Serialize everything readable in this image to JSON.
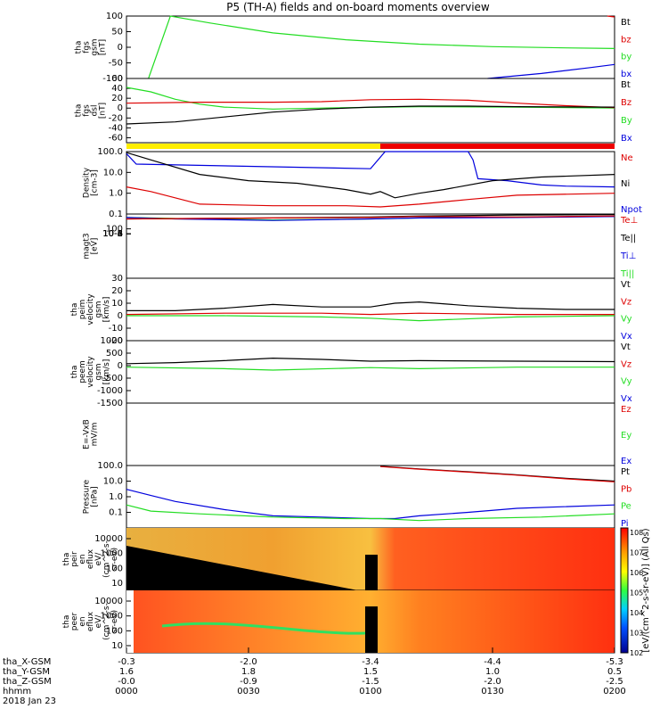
{
  "title": "P5 (TH-A) fields and on-board moments overview",
  "colors": {
    "black": "#000000",
    "red": "#dd0000",
    "green": "#22dd22",
    "blue": "#0000dd",
    "yellow": "#ffee00",
    "barred": "#ee0000"
  },
  "chart_data": {
    "type": "line",
    "time_axis": {
      "ticks": [
        "0000",
        "0030",
        "0100",
        "0130",
        "0200"
      ],
      "rows": [
        {
          "label": "tha_X-GSM",
          "values": [
            "-0.3",
            "-2.0",
            "-3.4",
            "-4.4",
            "-5.3"
          ]
        },
        {
          "label": "tha_Y-GSM",
          "values": [
            "1.6",
            "1.8",
            "1.5",
            "1.0",
            "0.5"
          ]
        },
        {
          "label": "tha_Z-GSM",
          "values": [
            "-0.0",
            "-0.9",
            "-1.5",
            "-2.0",
            "-2.5"
          ]
        },
        {
          "label": "hhmm",
          "values": [
            "0000",
            "0030",
            "0100",
            "0130",
            "0200"
          ]
        }
      ],
      "date": "2018 Jan 23"
    },
    "panels": [
      {
        "id": "fgs_gsm",
        "ylabel": [
          "tha",
          "fgs",
          "gsm",
          "[nT]"
        ],
        "ylim": [
          -100,
          100
        ],
        "yticks": [
          "100",
          "50",
          "0",
          "-50",
          "-100"
        ],
        "legend": [
          {
            "name": "Bt",
            "color": "#000000"
          },
          {
            "name": "bz",
            "color": "#dd0000"
          },
          {
            "name": "by",
            "color": "#22dd22"
          },
          {
            "name": "bx",
            "color": "#0000dd"
          }
        ],
        "series": [
          {
            "name": "by",
            "color": "#22dd22",
            "x": [
              0.045,
              0.09,
              0.17,
              0.3,
              0.45,
              0.6,
              0.75,
              0.9,
              1.0
            ],
            "y": [
              -100,
              100,
              78,
              46,
              24,
              10,
              2,
              -2,
              -4
            ]
          },
          {
            "name": "bx",
            "color": "#0000dd",
            "x": [
              0.74,
              0.85,
              0.95,
              1.0
            ],
            "y": [
              -100,
              -84,
              -65,
              -55
            ]
          },
          {
            "name": "bz",
            "color": "#dd0000",
            "x": [
              0.985,
              1.0
            ],
            "y": [
              100,
              97
            ]
          }
        ]
      },
      {
        "id": "fgs_dsl",
        "ylabel": [
          "tha",
          "fgs",
          "dsl",
          "[nT]"
        ],
        "ylim": [
          -70,
          60
        ],
        "yticks": [
          "60",
          "40",
          "20",
          "0",
          "-20",
          "-40",
          "-60"
        ],
        "legend": [
          {
            "name": "Bt",
            "color": "#000000"
          },
          {
            "name": "Bz",
            "color": "#dd0000"
          },
          {
            "name": "By",
            "color": "#22dd22"
          },
          {
            "name": "Bx",
            "color": "#0000dd"
          }
        ],
        "series": [
          {
            "name": "By",
            "color": "#22dd22",
            "x": [
              0,
              0.05,
              0.1,
              0.15,
              0.2,
              0.3,
              0.4,
              0.6,
              0.8,
              1.0
            ],
            "y": [
              42,
              33,
              18,
              8,
              2,
              -2,
              0,
              3,
              2,
              0
            ]
          },
          {
            "name": "Bz",
            "color": "#dd0000",
            "x": [
              0,
              0.15,
              0.3,
              0.4,
              0.5,
              0.6,
              0.7,
              0.8,
              0.9,
              1.0
            ],
            "y": [
              10,
              12,
              12,
              13,
              17,
              18,
              16,
              10,
              5,
              1
            ]
          },
          {
            "name": "Bt",
            "color": "#000000",
            "x": [
              0,
              0.1,
              0.2,
              0.3,
              0.4,
              0.5,
              0.6,
              0.7,
              0.8,
              1.0
            ],
            "y": [
              -32,
              -28,
              -18,
              -8,
              -2,
              2,
              4,
              4,
              3,
              2
            ]
          }
        ]
      },
      {
        "id": "density",
        "ylabel": [
          "Density",
          "[cm-3]"
        ],
        "ylim": [
          0.1,
          100
        ],
        "log": true,
        "yticks": [
          "100.0",
          "10.0",
          "1.0",
          "0.1"
        ],
        "legend": [
          {
            "name": "Ne",
            "color": "#dd0000"
          },
          {
            "name": "Ni",
            "color": "#000000"
          },
          {
            "name": "Npot",
            "color": "#0000dd"
          }
        ],
        "series": [
          {
            "name": "Npot",
            "color": "#0000dd",
            "x": [
              0,
              0.02,
              0.5,
              0.53,
              0.7,
              0.71,
              0.72,
              0.78,
              0.85,
              0.9,
              1.0
            ],
            "y": [
              80,
              25,
              15,
              100,
              100,
              40,
              5,
              4,
              2.5,
              2.2,
              2.0
            ]
          },
          {
            "name": "Ni",
            "color": "#000000",
            "x": [
              0,
              0.05,
              0.15,
              0.25,
              0.35,
              0.45,
              0.5,
              0.52,
              0.55,
              0.6,
              0.65,
              0.75,
              0.85,
              1.0
            ],
            "y": [
              90,
              40,
              8,
              4,
              3,
              1.5,
              0.9,
              1.2,
              0.6,
              1.0,
              1.5,
              4,
              6,
              8
            ]
          },
          {
            "name": "Ne",
            "color": "#dd0000",
            "x": [
              0,
              0.05,
              0.15,
              0.3,
              0.45,
              0.52,
              0.6,
              0.7,
              0.8,
              1.0
            ],
            "y": [
              2,
              1.2,
              0.3,
              0.25,
              0.25,
              0.22,
              0.3,
              0.5,
              0.8,
              1.0
            ]
          }
        ]
      },
      {
        "id": "magt3",
        "ylabel": [
          "magt3",
          "[eV]"
        ],
        "ylim": [
          -9,
          4
        ],
        "log": true,
        "yticks": [
          "10^4",
          "10^2",
          "10^0",
          "10^-2",
          "10^-4",
          "10^-6",
          "10^-8"
        ],
        "legend": [
          {
            "name": "Te⊥",
            "color": "#dd0000"
          },
          {
            "name": "Te||",
            "color": "#000000"
          },
          {
            "name": "Ti⊥",
            "color": "#0000dd"
          },
          {
            "name": "Ti||",
            "color": "#22dd22"
          }
        ],
        "series": [
          {
            "name": "Ti||",
            "color": "#22dd22",
            "x": [
              0,
              0.1,
              0.3,
              0.5,
              0.6,
              0.8,
              1.0
            ],
            "y": [
              3.3,
              3.1,
              2.8,
              3.0,
              3.2,
              3.4,
              3.5
            ]
          },
          {
            "name": "Ti⊥",
            "color": "#0000dd",
            "x": [
              0,
              0.1,
              0.3,
              0.5,
              0.6,
              0.8,
              1.0
            ],
            "y": [
              3.3,
              3.0,
              2.7,
              3.0,
              3.2,
              3.3,
              3.5
            ]
          },
          {
            "name": "Te||",
            "color": "#000000",
            "x": [
              0,
              0.3,
              0.5,
              0.6,
              0.8,
              1.0
            ],
            "y": [
              3.0,
              3.2,
              3.4,
              3.6,
              3.8,
              3.9
            ]
          },
          {
            "name": "Te⊥",
            "color": "#dd0000",
            "x": [
              0,
              0.3,
              0.5,
              0.6,
              0.8,
              1.0
            ],
            "y": [
              3.0,
              3.2,
              3.3,
              3.5,
              3.4,
              3.6
            ]
          }
        ]
      },
      {
        "id": "peim",
        "ylabel": [
          "tha",
          "peim",
          "velocity",
          "gsm",
          "[km/s]"
        ],
        "ylim": [
          -20,
          30
        ],
        "yticks": [
          "30",
          "20",
          "10",
          "0",
          "-10",
          "-20"
        ],
        "legend": [
          {
            "name": "Vt",
            "color": "#000000"
          },
          {
            "name": "Vz",
            "color": "#dd0000"
          },
          {
            "name": "Vy",
            "color": "#22dd22"
          },
          {
            "name": "Vx",
            "color": "#0000dd"
          }
        ],
        "series": [
          {
            "name": "Vt",
            "color": "#000000",
            "x": [
              0,
              0.1,
              0.2,
              0.3,
              0.4,
              0.5,
              0.55,
              0.6,
              0.7,
              0.8,
              0.9,
              1.0
            ],
            "y": [
              4,
              4,
              6,
              9,
              7,
              7,
              10,
              11,
              8,
              6,
              5,
              5
            ]
          },
          {
            "name": "Vz",
            "color": "#dd0000",
            "x": [
              0,
              0.2,
              0.4,
              0.5,
              0.6,
              0.8,
              1.0
            ],
            "y": [
              1,
              2,
              2,
              1,
              2,
              1,
              1
            ]
          },
          {
            "name": "Vy",
            "color": "#22dd22",
            "x": [
              0,
              0.2,
              0.4,
              0.5,
              0.6,
              0.8,
              1.0
            ],
            "y": [
              0,
              0,
              -1,
              -2,
              -4,
              -1,
              0
            ]
          }
        ]
      },
      {
        "id": "peem",
        "ylabel": [
          "tha",
          "peem",
          "velocity",
          "gsm",
          "[km/s]"
        ],
        "ylim": [
          -1500,
          1000
        ],
        "yticks": [
          "1000",
          "500",
          "0",
          "-500",
          "-1000",
          "-1500"
        ],
        "legend": [
          {
            "name": "Vt",
            "color": "#000000"
          },
          {
            "name": "Vz",
            "color": "#dd0000"
          },
          {
            "name": "Vy",
            "color": "#22dd22"
          },
          {
            "name": "Vx",
            "color": "#0000dd"
          }
        ],
        "series": [
          {
            "name": "Vt",
            "color": "#000000",
            "x": [
              0,
              0.1,
              0.2,
              0.3,
              0.4,
              0.5,
              0.6,
              0.8,
              1.0
            ],
            "y": [
              80,
              120,
              200,
              300,
              250,
              180,
              200,
              180,
              160
            ]
          },
          {
            "name": "Vy",
            "color": "#22dd22",
            "x": [
              0,
              0.2,
              0.3,
              0.5,
              0.6,
              0.8,
              1.0
            ],
            "y": [
              -60,
              -120,
              -180,
              -80,
              -120,
              -60,
              -60
            ]
          }
        ]
      },
      {
        "id": "efield",
        "ylabel": [
          "E=-VxB",
          "mV/m"
        ],
        "ylim": [
          0,
          1
        ],
        "yticks": [],
        "legend": [
          {
            "name": "Ez",
            "color": "#dd0000"
          },
          {
            "name": "Ey",
            "color": "#22dd22"
          },
          {
            "name": "Ex",
            "color": "#0000dd"
          }
        ],
        "series": []
      },
      {
        "id": "pressure",
        "ylabel": [
          "Pressure",
          "[nPa]"
        ],
        "ylim": [
          0.01,
          100
        ],
        "log": true,
        "yticks": [
          "100.0",
          "10.0",
          "1.0",
          "0.1"
        ],
        "legend": [
          {
            "name": "Pt",
            "color": "#000000"
          },
          {
            "name": "Pb",
            "color": "#dd0000"
          },
          {
            "name": "Pe",
            "color": "#22dd22"
          },
          {
            "name": "Pi",
            "color": "#0000dd"
          }
        ],
        "series": [
          {
            "name": "Pi",
            "color": "#0000dd",
            "x": [
              0,
              0.05,
              0.1,
              0.2,
              0.3,
              0.4,
              0.5,
              0.52,
              0.55,
              0.6,
              0.7,
              0.8,
              1.0
            ],
            "y": [
              3,
              1.2,
              0.5,
              0.15,
              0.06,
              0.05,
              0.04,
              0.04,
              0.04,
              0.06,
              0.1,
              0.18,
              0.3
            ]
          },
          {
            "name": "Pe",
            "color": "#22dd22",
            "x": [
              0,
              0.05,
              0.15,
              0.3,
              0.45,
              0.52,
              0.6,
              0.7,
              0.85,
              1.0
            ],
            "y": [
              0.3,
              0.12,
              0.08,
              0.05,
              0.04,
              0.04,
              0.03,
              0.04,
              0.05,
              0.08
            ]
          },
          {
            "name": "Pt",
            "color": "#000000",
            "x": [
              0.52,
              0.6,
              0.7,
              0.8,
              0.9,
              1.0
            ],
            "y": [
              90,
              60,
              40,
              25,
              15,
              10
            ]
          },
          {
            "name": "Pb",
            "color": "#dd0000",
            "x": [
              0.52,
              0.6,
              0.7,
              0.8,
              0.9,
              1.0
            ],
            "y": [
              85,
              58,
              38,
              24,
              14,
              9
            ]
          }
        ]
      },
      {
        "id": "peir",
        "ylabel": [
          "tha",
          "peir",
          "en",
          "eflux",
          "eV/",
          "(cm^2-s-",
          "sr-eV)"
        ],
        "yticks": [
          "10000",
          "1000",
          "100",
          "10"
        ],
        "type": "heatmap"
      },
      {
        "id": "peer",
        "ylabel": [
          "tha",
          "peer",
          "en",
          "eflux",
          "eV/",
          "(cm^2-s-",
          "sr-eV)"
        ],
        "yticks": [
          "10000",
          "1000",
          "100",
          "10"
        ],
        "type": "heatmap"
      }
    ],
    "colorbar": {
      "ticks": [
        "10^8",
        "10^7",
        "10^6",
        "10^5",
        "10^4",
        "10^3",
        "10^2"
      ],
      "label": "[eV/(cm^2-s-sr-eV)] (All Qs)"
    },
    "mode_bar": {
      "segments": [
        {
          "to": 0.52,
          "color": "#ffee00"
        },
        {
          "to": 1.0,
          "color": "#ee0000"
        }
      ]
    }
  }
}
